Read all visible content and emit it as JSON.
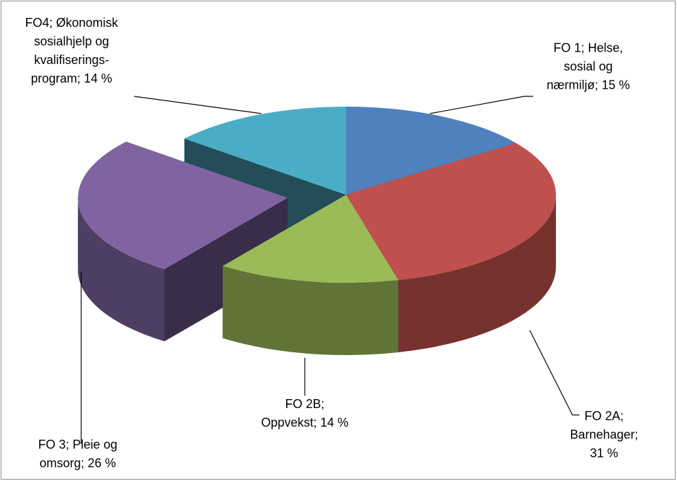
{
  "chart_data": {
    "type": "pie3d",
    "values": [
      15,
      31,
      14,
      26,
      14
    ],
    "value_labels": [
      "FO 1; Helse,\nsosial og\nnærmiljø; 15 %",
      "FO 2A;\nBarnehager;\n31 %",
      "FO 2B;\nOppvekst; 14 %",
      "FO 3; Pleie og\nomsorg; 26 %",
      "FO4; Økonomisk\nsosialhjelp og\nkvalifiserings-\nprogram; 14 %"
    ],
    "colors": [
      "#4f81bd",
      "#c0504d",
      "#9bbb59",
      "#8064a2",
      "#4bacc6"
    ],
    "exploded": 3
  }
}
